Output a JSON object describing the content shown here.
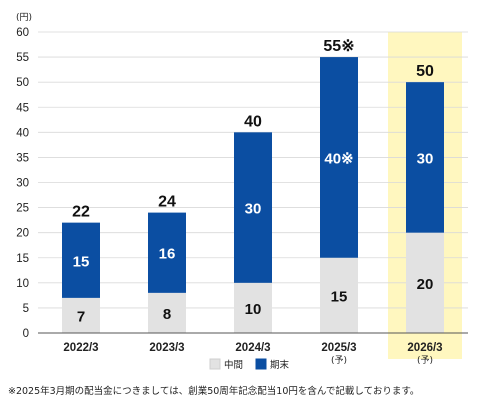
{
  "chart_data": {
    "type": "bar",
    "stacked": true,
    "unit": "(円)",
    "categories": [
      "2022/3",
      "2023/3",
      "2024/3",
      "2025/3",
      "2026/3"
    ],
    "category_sublabels": [
      "",
      "",
      "",
      "(予)",
      "(予)"
    ],
    "series": [
      {
        "name": "中間",
        "values": [
          7,
          8,
          10,
          15,
          20
        ],
        "color": "#e2e2e2",
        "label_color": "#111111"
      },
      {
        "name": "期末",
        "values": [
          15,
          16,
          30,
          40,
          30
        ],
        "color": "#0b4ea2",
        "label_color": "#ffffff"
      }
    ],
    "segment_labels": {
      "中間": [
        "7",
        "8",
        "10",
        "15",
        "20"
      ],
      "期末": [
        "15",
        "16",
        "30",
        "40※",
        "30"
      ]
    },
    "totals": [
      "22",
      "24",
      "40",
      "55※",
      "50"
    ],
    "highlight_category": "2026/3",
    "highlight_color": "#fff7bf",
    "ylim": [
      0,
      60
    ],
    "yticks": [
      0,
      5,
      10,
      15,
      20,
      25,
      30,
      35,
      40,
      45,
      50,
      55,
      60
    ],
    "grid": true,
    "legend_position": "bottom"
  },
  "footnote": "※2025年3月期の配当金につきましては、創業50周年記念配当10円を含んで記載しております。"
}
